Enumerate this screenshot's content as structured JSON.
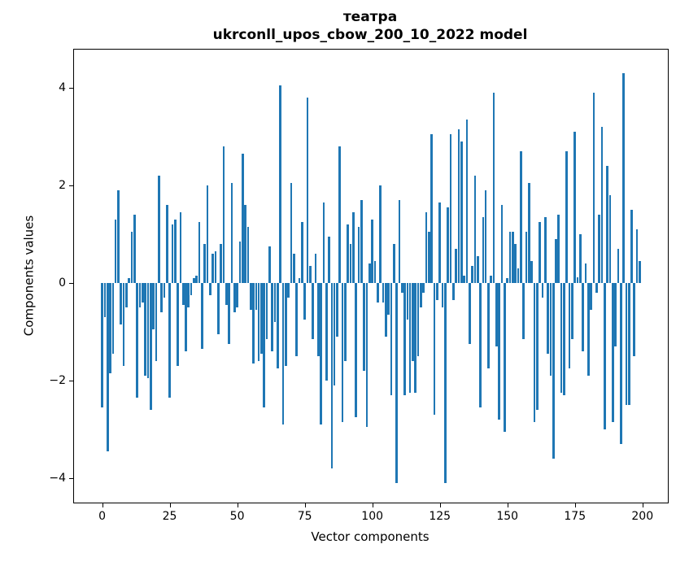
{
  "chart_data": {
    "type": "bar",
    "title_line1": "театра",
    "title_line2": "ukrconll_upos_cbow_200_10_2022 model",
    "xlabel": "Vector components",
    "ylabel": "Components values",
    "bar_color": "#1f77b4",
    "axis_color": "#000000",
    "background_color": "#ffffff",
    "grid": false,
    "legend": false,
    "x_start": 0,
    "bar_width": 0.8,
    "xlim": [
      -10.4,
      209.4
    ],
    "ylim": [
      -4.5,
      4.78
    ],
    "xticks": [
      0,
      25,
      50,
      75,
      100,
      125,
      150,
      175,
      200
    ],
    "yticks": [
      {
        "v": 4,
        "label": "4"
      },
      {
        "v": 2,
        "label": "2"
      },
      {
        "v": 0,
        "label": "0"
      },
      {
        "v": -2,
        "label": "−2"
      },
      {
        "v": -4,
        "label": "−4"
      }
    ],
    "values": [
      -2.55,
      -0.7,
      -3.45,
      -1.85,
      -1.45,
      1.3,
      1.9,
      -0.85,
      -1.7,
      -0.5,
      0.1,
      1.05,
      1.4,
      -2.35,
      -0.5,
      -0.4,
      -1.9,
      -1.95,
      -2.6,
      -0.95,
      -1.6,
      2.2,
      -0.6,
      -0.3,
      1.6,
      -2.35,
      1.2,
      1.3,
      -1.7,
      1.45,
      -0.45,
      -1.4,
      -0.5,
      -0.25,
      0.1,
      0.15,
      1.25,
      -1.35,
      0.8,
      2.0,
      -0.25,
      0.6,
      0.65,
      -1.05,
      0.8,
      2.8,
      -0.45,
      -1.25,
      2.05,
      -0.6,
      -0.5,
      0.85,
      2.65,
      1.6,
      1.15,
      -0.55,
      -1.65,
      -0.55,
      -1.6,
      -1.45,
      -2.55,
      -1.15,
      0.75,
      -1.4,
      -0.8,
      -1.75,
      4.05,
      -2.9,
      -1.7,
      -0.3,
      2.05,
      0.6,
      -1.5,
      0.1,
      1.25,
      -0.75,
      3.8,
      0.35,
      -1.15,
      0.6,
      -1.5,
      -2.9,
      1.65,
      -2.0,
      0.95,
      -3.8,
      -2.1,
      -1.1,
      2.8,
      -2.85,
      -1.6,
      1.2,
      0.8,
      1.45,
      -2.75,
      1.15,
      1.7,
      -1.8,
      -2.95,
      0.4,
      1.3,
      0.45,
      -0.4,
      2.0,
      -0.4,
      -1.1,
      -0.65,
      -2.3,
      0.8,
      -4.1,
      1.7,
      -0.2,
      -2.3,
      -0.75,
      -2.25,
      -1.6,
      -2.25,
      -1.5,
      -0.5,
      -0.2,
      1.45,
      1.05,
      3.05,
      -2.7,
      -0.35,
      1.65,
      -0.5,
      -4.1,
      1.55,
      3.05,
      -0.35,
      0.7,
      3.15,
      2.9,
      0.15,
      3.35,
      -1.25,
      0.35,
      2.2,
      0.55,
      -2.55,
      1.35,
      1.9,
      -1.75,
      0.15,
      3.9,
      -1.3,
      -2.8,
      1.6,
      -3.05,
      0.1,
      1.05,
      1.05,
      0.8,
      0.3,
      2.7,
      -1.15,
      1.05,
      2.05,
      0.45,
      -2.85,
      -2.6,
      1.25,
      -0.3,
      1.35,
      -1.45,
      -1.9,
      -3.6,
      0.9,
      1.4,
      -2.25,
      -2.3,
      2.7,
      -1.75,
      -1.15,
      3.1,
      0.12,
      1.0,
      -1.4,
      0.4,
      -1.9,
      -0.55,
      3.9,
      -0.2,
      1.4,
      3.2,
      -3.0,
      2.4,
      1.8,
      -2.85,
      -1.3,
      0.7,
      -3.3,
      4.3,
      -2.5,
      -2.5,
      1.5,
      -1.5,
      1.1,
      0.45
    ]
  }
}
